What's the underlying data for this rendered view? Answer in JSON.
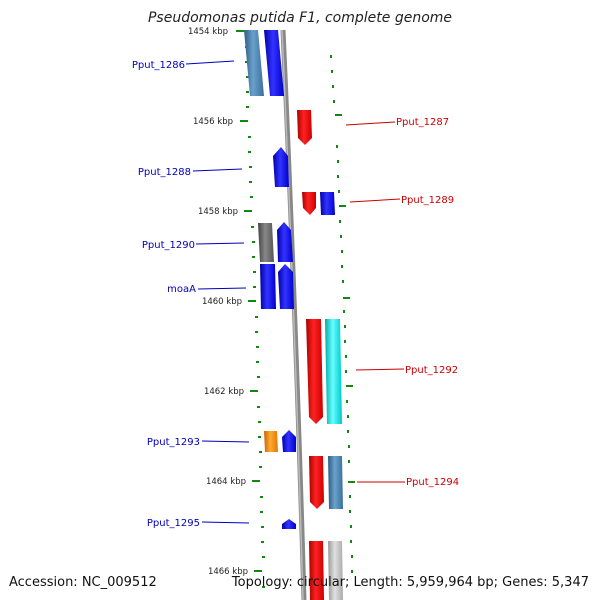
{
  "title": "Pseudomonas putida F1, complete genome",
  "footer": {
    "accession": "Accession: NC_009512",
    "summary": "Topology: circular; Length: 5,959,964 bp; Genes: 5,347"
  },
  "ticks": [
    "1454 kbp",
    "1456 kbp",
    "1458 kbp",
    "1460 kbp",
    "1462 kbp",
    "1464 kbp",
    "1466 kbp"
  ],
  "labels_left": [
    "Pput_1286",
    "Pput_1288",
    "Pput_1290",
    "moaA",
    "Pput_1293",
    "Pput_1295"
  ],
  "labels_right": [
    "Pput_1287",
    "Pput_1289",
    "Pput_1292",
    "Pput_1294"
  ],
  "colors": {
    "blue": "#0000ee",
    "red": "#ee0000",
    "steelblue": "#4682b4",
    "gray": "#666666",
    "cyan": "#00e5e5",
    "orange": "#ff8c00",
    "lightgray": "#bbbbbb",
    "tick": "#118811",
    "label_left": "#0000bb",
    "label_right": "#cc0000"
  }
}
